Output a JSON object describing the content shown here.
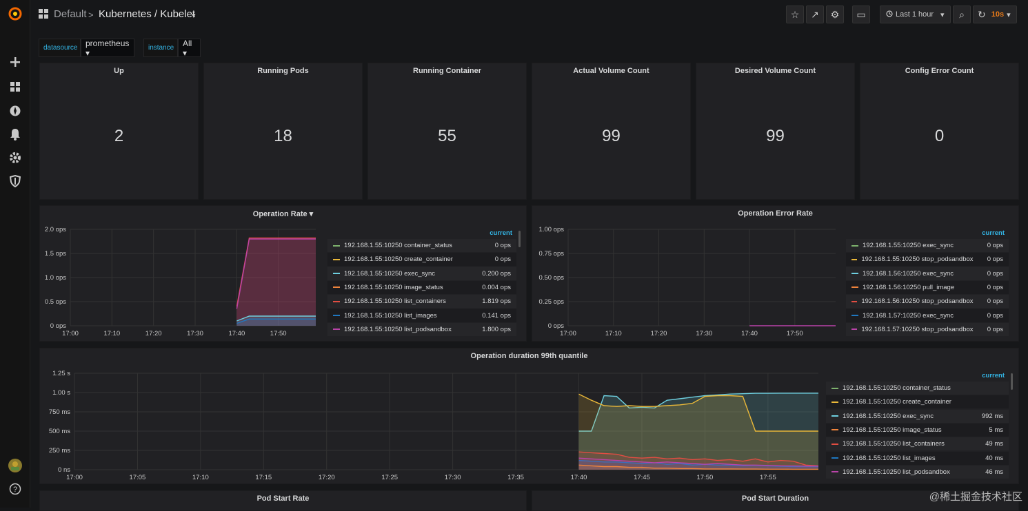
{
  "sidebar": {
    "items": [
      "grafana-logo",
      "plus-icon",
      "dashboards-icon",
      "explore-icon",
      "bell-icon",
      "gear-icon",
      "shield-icon",
      "avatar",
      "help-icon"
    ],
    "help_label": "?"
  },
  "header": {
    "folder": "Default",
    "separator": ">",
    "title": "Kubernetes / Kubelet",
    "caret": "▾"
  },
  "toolbar": {
    "star": "☆",
    "share": "↗",
    "settings": "⚙",
    "tv": "▭",
    "time_range": "Last 1 hour",
    "time_caret": "▾",
    "zoom": "⌕",
    "refresh_icon": "↻",
    "refresh_interval": "10s",
    "refresh_caret": "▾"
  },
  "variables": [
    {
      "label": "datasource",
      "value": "prometheus ▾"
    },
    {
      "label": "instance",
      "value": "All ▾"
    }
  ],
  "stats": [
    {
      "title": "Up",
      "value": "2"
    },
    {
      "title": "Running Pods",
      "value": "18"
    },
    {
      "title": "Running Container",
      "value": "55"
    },
    {
      "title": "Actual Volume Count",
      "value": "99"
    },
    {
      "title": "Desired Volume Count",
      "value": "99"
    },
    {
      "title": "Config Error Count",
      "value": "0"
    }
  ],
  "colors": {
    "green": "#7eb26d",
    "yellow": "#eab839",
    "cyan": "#6ed0e0",
    "orange": "#ef843c",
    "red": "#e24d42",
    "blue": "#1f78c1",
    "purple": "#ba43a9"
  },
  "panels": {
    "op_rate": {
      "title": "Operation Rate ▾",
      "legend_header": "current",
      "legend": [
        {
          "name": "192.168.1.55:10250 container_status",
          "value": "0 ops",
          "color": "#7eb26d"
        },
        {
          "name": "192.168.1.55:10250 create_container",
          "value": "0 ops",
          "color": "#eab839"
        },
        {
          "name": "192.168.1.55:10250 exec_sync",
          "value": "0.200 ops",
          "color": "#6ed0e0"
        },
        {
          "name": "192.168.1.55:10250 image_status",
          "value": "0.004 ops",
          "color": "#ef843c"
        },
        {
          "name": "192.168.1.55:10250 list_containers",
          "value": "1.819 ops",
          "color": "#e24d42"
        },
        {
          "name": "192.168.1.55:10250 list_images",
          "value": "0.141 ops",
          "color": "#1f78c1"
        },
        {
          "name": "192.168.1.55:10250 list_podsandbox",
          "value": "1.800 ops",
          "color": "#ba43a9"
        }
      ]
    },
    "op_error": {
      "title": "Operation Error Rate",
      "legend_header": "current",
      "legend": [
        {
          "name": "192.168.1.55:10250 exec_sync",
          "value": "0 ops",
          "color": "#7eb26d"
        },
        {
          "name": "192.168.1.55:10250 stop_podsandbox",
          "value": "0 ops",
          "color": "#eab839"
        },
        {
          "name": "192.168.1.56:10250 exec_sync",
          "value": "0 ops",
          "color": "#6ed0e0"
        },
        {
          "name": "192.168.1.56:10250 pull_image",
          "value": "0 ops",
          "color": "#ef843c"
        },
        {
          "name": "192.168.1.56:10250 stop_podsandbox",
          "value": "0 ops",
          "color": "#e24d42"
        },
        {
          "name": "192.168.1.57:10250 exec_sync",
          "value": "0 ops",
          "color": "#1f78c1"
        },
        {
          "name": "192.168.1.57:10250 stop_podsandbox",
          "value": "0 ops",
          "color": "#ba43a9"
        }
      ]
    },
    "op_duration": {
      "title": "Operation duration 99th quantile",
      "legend_header": "current",
      "legend": [
        {
          "name": "192.168.1.55:10250 container_status",
          "value": "",
          "color": "#7eb26d"
        },
        {
          "name": "192.168.1.55:10250 create_container",
          "value": "",
          "color": "#eab839"
        },
        {
          "name": "192.168.1.55:10250 exec_sync",
          "value": "992 ms",
          "color": "#6ed0e0"
        },
        {
          "name": "192.168.1.55:10250 image_status",
          "value": "5 ms",
          "color": "#ef843c"
        },
        {
          "name": "192.168.1.55:10250 list_containers",
          "value": "49 ms",
          "color": "#e24d42"
        },
        {
          "name": "192.168.1.55:10250 list_images",
          "value": "40 ms",
          "color": "#1f78c1"
        },
        {
          "name": "192.168.1.55:10250 list_podsandbox",
          "value": "46 ms",
          "color": "#ba43a9"
        }
      ]
    },
    "pod_start_rate": {
      "title": "Pod Start Rate"
    },
    "pod_start_duration": {
      "title": "Pod Start Duration"
    }
  },
  "chart_data": [
    {
      "type": "area",
      "title": "Operation Rate",
      "xticks": [
        "17:00",
        "17:10",
        "17:20",
        "17:30",
        "17:40",
        "17:50"
      ],
      "yticks": [
        "2.0 ops",
        "1.5 ops",
        "1.0 ops",
        "0.5 ops",
        "0 ops"
      ],
      "ylim": [
        0,
        2
      ],
      "x": [
        "17:40",
        "17:43",
        "17:59"
      ],
      "series": [
        {
          "name": "192.168.1.55:10250 list_containers",
          "values": [
            0.4,
            1.82,
            1.82
          ]
        },
        {
          "name": "192.168.1.55:10250 list_podsandbox",
          "values": [
            0.35,
            1.8,
            1.8
          ]
        },
        {
          "name": "192.168.1.55:10250 exec_sync",
          "values": [
            0.1,
            0.2,
            0.2
          ]
        },
        {
          "name": "192.168.1.55:10250 list_images",
          "values": [
            0.05,
            0.14,
            0.14
          ]
        }
      ]
    },
    {
      "type": "line",
      "title": "Operation Error Rate",
      "xticks": [
        "17:00",
        "17:10",
        "17:20",
        "17:30",
        "17:40",
        "17:50"
      ],
      "yticks": [
        "1.00 ops",
        "0.75 ops",
        "0.50 ops",
        "0.25 ops",
        "0 ops"
      ],
      "ylim": [
        0,
        1
      ],
      "x": [
        "17:40",
        "17:59"
      ],
      "series": [
        {
          "name": "192.168.1.57:10250 stop_podsandbox",
          "values": [
            0,
            0
          ]
        }
      ]
    },
    {
      "type": "area",
      "title": "Operation duration 99th quantile",
      "xticks": [
        "17:00",
        "17:05",
        "17:10",
        "17:15",
        "17:20",
        "17:25",
        "17:30",
        "17:35",
        "17:40",
        "17:45",
        "17:50",
        "17:55"
      ],
      "yticks": [
        "1.25 s",
        "1.00 s",
        "750 ms",
        "500 ms",
        "250 ms",
        "0 ns"
      ],
      "ylim": [
        0,
        1250
      ],
      "x": [
        "17:40",
        "17:41",
        "17:42",
        "17:43",
        "17:44",
        "17:45",
        "17:46",
        "17:47",
        "17:48",
        "17:49",
        "17:50",
        "17:51",
        "17:52",
        "17:53",
        "17:54",
        "17:55",
        "17:56",
        "17:57",
        "17:58",
        "17:59"
      ],
      "series": [
        {
          "name": "192.168.1.55:10250 exec_sync",
          "values": [
            500,
            500,
            960,
            950,
            800,
            810,
            800,
            900,
            920,
            940,
            960,
            970,
            980,
            985,
            990,
            990,
            992,
            992,
            992,
            992
          ]
        },
        {
          "name": "192.168.1.55:10250 create_container",
          "values": [
            980,
            900,
            830,
            820,
            830,
            820,
            820,
            830,
            840,
            860,
            950,
            960,
            960,
            950,
            500,
            500,
            500,
            500,
            500,
            500
          ]
        },
        {
          "name": "192.168.1.55:10250 list_containers",
          "values": [
            230,
            220,
            210,
            200,
            160,
            150,
            160,
            140,
            150,
            130,
            140,
            120,
            130,
            110,
            140,
            100,
            120,
            110,
            60,
            49
          ]
        },
        {
          "name": "192.168.1.55:10250 list_images",
          "values": [
            120,
            110,
            100,
            100,
            90,
            80,
            90,
            70,
            80,
            60,
            70,
            60,
            60,
            50,
            55,
            50,
            45,
            40,
            40,
            40
          ]
        },
        {
          "name": "192.168.1.55:10250 list_podsandbox",
          "values": [
            150,
            140,
            130,
            120,
            110,
            100,
            90,
            100,
            90,
            80,
            70,
            80,
            70,
            60,
            60,
            55,
            50,
            48,
            46,
            46
          ]
        },
        {
          "name": "192.168.1.55:10250 image_status",
          "values": [
            60,
            50,
            40,
            40,
            30,
            30,
            20,
            20,
            15,
            15,
            10,
            10,
            10,
            8,
            8,
            6,
            6,
            5,
            5,
            5
          ]
        }
      ]
    }
  ],
  "watermark": "@稀土掘金技术社区"
}
